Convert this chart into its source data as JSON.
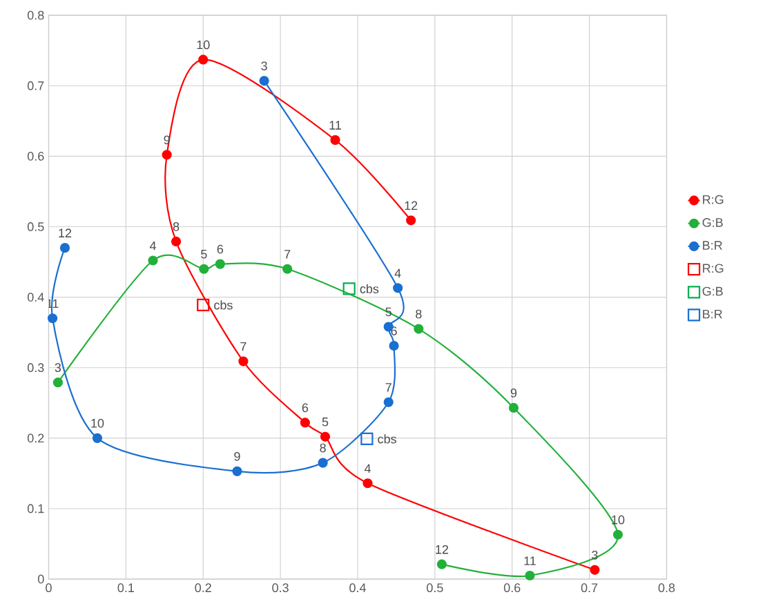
{
  "chart_data": {
    "type": "line",
    "xlim": [
      0,
      0.8
    ],
    "ylim": [
      0,
      0.8
    ],
    "xticks": [
      0,
      0.1,
      0.2,
      0.3,
      0.4,
      0.5,
      0.6,
      0.7,
      0.8
    ],
    "yticks": [
      0,
      0.1,
      0.2,
      0.3,
      0.4,
      0.5,
      0.6,
      0.7,
      0.8
    ],
    "grid": true,
    "legend": "right",
    "line_style": "solid",
    "series": [
      {
        "name": "R:G",
        "color": "#ff0000",
        "marker": "circle",
        "x": [
          0.707,
          0.413,
          0.358,
          0.332,
          0.252,
          0.165,
          0.153,
          0.2,
          0.371,
          0.469
        ],
        "values": [
          0.013,
          0.136,
          0.202,
          0.222,
          0.309,
          0.479,
          0.602,
          0.737,
          0.623,
          0.509
        ]
      },
      {
        "name": "G:B",
        "color": "#22b03a",
        "marker": "circle",
        "x": [
          0.012,
          0.135,
          0.201,
          0.222,
          0.309,
          0.479,
          0.602,
          0.737,
          0.623,
          0.509
        ],
        "values": [
          0.279,
          0.452,
          0.44,
          0.447,
          0.44,
          0.355,
          0.243,
          0.063,
          0.005,
          0.021
        ]
      },
      {
        "name": "B:R",
        "color": "#1a6fd0",
        "marker": "circle",
        "x": [
          0.279,
          0.452,
          0.44,
          0.447,
          0.44,
          0.355,
          0.244,
          0.063,
          0.005,
          0.021
        ],
        "values": [
          0.707,
          0.413,
          0.358,
          0.331,
          0.251,
          0.165,
          0.153,
          0.2,
          0.37,
          0.47
        ]
      },
      {
        "name": "R:G",
        "type": "scatter",
        "color": "#ff0000",
        "marker": "square",
        "x": [
          0.2
        ],
        "values": [
          0.389
        ]
      },
      {
        "name": "G:B",
        "type": "scatter",
        "color": "#00b050",
        "marker": "square",
        "x": [
          0.389
        ],
        "values": [
          0.412
        ]
      },
      {
        "name": "B:R",
        "type": "scatter",
        "color": "#1a6fd0",
        "marker": "square",
        "x": [
          0.412
        ],
        "values": [
          0.199
        ]
      }
    ],
    "annotations": [
      {
        "text": "3",
        "x": 0.707,
        "y": 0.013
      },
      {
        "text": "4",
        "x": 0.413,
        "y": 0.136
      },
      {
        "text": "5",
        "x": 0.358,
        "y": 0.202
      },
      {
        "text": "6",
        "x": 0.332,
        "y": 0.222
      },
      {
        "text": "7",
        "x": 0.252,
        "y": 0.309
      },
      {
        "text": "8",
        "x": 0.165,
        "y": 0.479
      },
      {
        "text": "9",
        "x": 0.153,
        "y": 0.602
      },
      {
        "text": "10",
        "x": 0.2,
        "y": 0.737
      },
      {
        "text": "11",
        "x": 0.371,
        "y": 0.623
      },
      {
        "text": "12",
        "x": 0.469,
        "y": 0.509
      },
      {
        "text": "3",
        "x": 0.012,
        "y": 0.279
      },
      {
        "text": "4",
        "x": 0.135,
        "y": 0.452
      },
      {
        "text": "5",
        "x": 0.201,
        "y": 0.44
      },
      {
        "text": "6",
        "x": 0.222,
        "y": 0.447
      },
      {
        "text": "7",
        "x": 0.309,
        "y": 0.44
      },
      {
        "text": "8",
        "x": 0.479,
        "y": 0.355
      },
      {
        "text": "9",
        "x": 0.602,
        "y": 0.243
      },
      {
        "text": "10",
        "x": 0.737,
        "y": 0.063
      },
      {
        "text": "11",
        "x": 0.623,
        "y": 0.005
      },
      {
        "text": "12",
        "x": 0.509,
        "y": 0.021
      },
      {
        "text": "3",
        "x": 0.279,
        "y": 0.707
      },
      {
        "text": "4",
        "x": 0.452,
        "y": 0.413
      },
      {
        "text": "5",
        "x": 0.44,
        "y": 0.358
      },
      {
        "text": "6",
        "x": 0.447,
        "y": 0.331
      },
      {
        "text": "7",
        "x": 0.44,
        "y": 0.251
      },
      {
        "text": "8",
        "x": 0.355,
        "y": 0.165
      },
      {
        "text": "9",
        "x": 0.244,
        "y": 0.153
      },
      {
        "text": "10",
        "x": 0.063,
        "y": 0.2
      },
      {
        "text": "11",
        "x": 0.005,
        "y": 0.37
      },
      {
        "text": "12",
        "x": 0.021,
        "y": 0.47
      },
      {
        "text": "cbs",
        "x": 0.2,
        "y": 0.389
      },
      {
        "text": "cbs",
        "x": 0.389,
        "y": 0.412
      },
      {
        "text": "cbs",
        "x": 0.412,
        "y": 0.199
      }
    ]
  }
}
